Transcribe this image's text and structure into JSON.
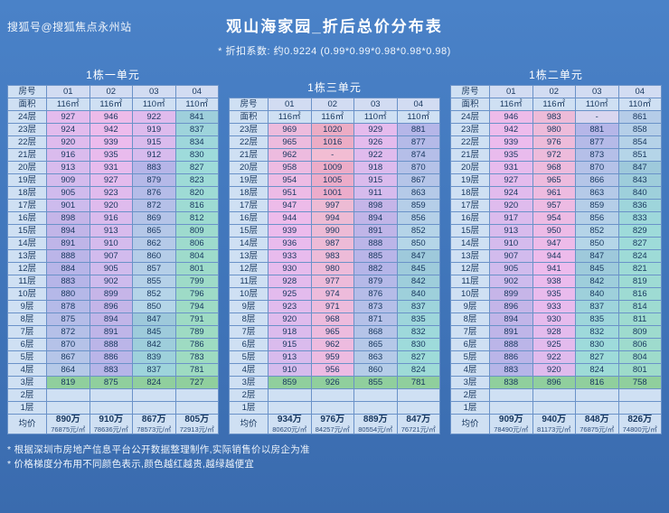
{
  "watermark": "搜狐号@搜狐焦点永州站",
  "title": "观山海家园_折后总价分布表",
  "subtitle": "* 折扣系数: 约0.9224 (0.99*0.99*0.98*0.98*0.98)",
  "notes": [
    "* 根据深圳市房地产信息平台公开数据整理制作,实际销售价以房企为准",
    "* 价格梯度分布用不同颜色表示,颜色越红越贵,越绿越便宜"
  ],
  "colors": {
    "background": "#4075ba",
    "header_bg": "#cfe0f3",
    "border": "#6a92c8",
    "green_row": "#90cf9d"
  },
  "chart_data": {
    "type": "table",
    "unit_of_values": "万 (total price)",
    "tables": [
      {
        "unit": "1栋一单元",
        "room_header": "房号",
        "area_header": "面积",
        "avg_label": "均价",
        "dash_color": "#d9d6ef",
        "columns": [
          "01",
          "02",
          "03",
          "04"
        ],
        "areas": [
          "116㎡",
          "116㎡",
          "110㎡",
          "110㎡"
        ],
        "floors": [
          {
            "label": "24层",
            "values": [
              927,
              946,
              922,
              841
            ]
          },
          {
            "label": "23层",
            "values": [
              924,
              942,
              919,
              837
            ]
          },
          {
            "label": "22层",
            "values": [
              920,
              939,
              915,
              834
            ]
          },
          {
            "label": "21层",
            "values": [
              916,
              935,
              912,
              830
            ]
          },
          {
            "label": "20层",
            "values": [
              913,
              931,
              883,
              827
            ]
          },
          {
            "label": "19层",
            "values": [
              909,
              927,
              879,
              823
            ]
          },
          {
            "label": "18层",
            "values": [
              905,
              923,
              876,
              820
            ]
          },
          {
            "label": "17层",
            "values": [
              901,
              920,
              872,
              816
            ]
          },
          {
            "label": "16层",
            "values": [
              898,
              916,
              869,
              812
            ]
          },
          {
            "label": "15层",
            "values": [
              894,
              913,
              865,
              809
            ]
          },
          {
            "label": "14层",
            "values": [
              891,
              910,
              862,
              806
            ]
          },
          {
            "label": "13层",
            "values": [
              888,
              907,
              860,
              804
            ]
          },
          {
            "label": "12层",
            "values": [
              884,
              905,
              857,
              801
            ]
          },
          {
            "label": "11层",
            "values": [
              883,
              902,
              855,
              799
            ]
          },
          {
            "label": "10层",
            "values": [
              880,
              899,
              852,
              796
            ]
          },
          {
            "label": "9层",
            "values": [
              878,
              896,
              850,
              794
            ]
          },
          {
            "label": "8层",
            "values": [
              875,
              894,
              847,
              791
            ]
          },
          {
            "label": "7层",
            "values": [
              872,
              891,
              845,
              789
            ]
          },
          {
            "label": "6层",
            "values": [
              870,
              888,
              842,
              786
            ]
          },
          {
            "label": "5层",
            "values": [
              867,
              886,
              839,
              783
            ]
          },
          {
            "label": "4层",
            "values": [
              864,
              883,
              837,
              781
            ]
          },
          {
            "label": "3层",
            "values": [
              819,
              875,
              824,
              727
            ],
            "green": true
          },
          {
            "label": "2层",
            "values": [
              null,
              null,
              null,
              null
            ]
          },
          {
            "label": "1层",
            "values": [
              null,
              null,
              null,
              null
            ]
          }
        ],
        "averages": [
          {
            "total": "890万",
            "per_sqm": "76875元/㎡"
          },
          {
            "total": "910万",
            "per_sqm": "78636元/㎡"
          },
          {
            "total": "867万",
            "per_sqm": "78573元/㎡"
          },
          {
            "total": "805万",
            "per_sqm": "72913元/㎡"
          }
        ]
      },
      {
        "unit": "1栋三单元",
        "room_header": "房号",
        "area_header": "面积",
        "avg_label": "均价",
        "dash_color": "#f2bdd3",
        "columns": [
          "01",
          "02",
          "03",
          "04"
        ],
        "areas": [
          "116㎡",
          "116㎡",
          "110㎡",
          "110㎡"
        ],
        "floors": [
          {
            "label": "23层",
            "values": [
              969,
              1020,
              929,
              881
            ]
          },
          {
            "label": "22层",
            "values": [
              965,
              1016,
              926,
              877
            ]
          },
          {
            "label": "21层",
            "values": [
              962,
              "-",
              922,
              874
            ]
          },
          {
            "label": "20层",
            "values": [
              958,
              1009,
              918,
              870
            ]
          },
          {
            "label": "19层",
            "values": [
              954,
              1005,
              915,
              867
            ]
          },
          {
            "label": "18层",
            "values": [
              951,
              1001,
              911,
              863
            ]
          },
          {
            "label": "17层",
            "values": [
              947,
              997,
              898,
              859
            ]
          },
          {
            "label": "16层",
            "values": [
              944,
              994,
              894,
              856
            ]
          },
          {
            "label": "15层",
            "values": [
              939,
              990,
              891,
              852
            ]
          },
          {
            "label": "14层",
            "values": [
              936,
              987,
              888,
              850
            ]
          },
          {
            "label": "13层",
            "values": [
              933,
              983,
              885,
              847
            ]
          },
          {
            "label": "12层",
            "values": [
              930,
              980,
              882,
              845
            ]
          },
          {
            "label": "11层",
            "values": [
              928,
              977,
              879,
              842
            ]
          },
          {
            "label": "10层",
            "values": [
              925,
              974,
              876,
              840
            ]
          },
          {
            "label": "9层",
            "values": [
              923,
              971,
              873,
              837
            ]
          },
          {
            "label": "8层",
            "values": [
              920,
              968,
              871,
              835
            ]
          },
          {
            "label": "7层",
            "values": [
              918,
              965,
              868,
              832
            ]
          },
          {
            "label": "6层",
            "values": [
              915,
              962,
              865,
              830
            ]
          },
          {
            "label": "5层",
            "values": [
              913,
              959,
              863,
              827
            ]
          },
          {
            "label": "4层",
            "values": [
              910,
              956,
              860,
              824
            ]
          },
          {
            "label": "3层",
            "values": [
              859,
              926,
              855,
              781
            ],
            "green": true
          },
          {
            "label": "2层",
            "values": [
              null,
              null,
              null,
              null
            ]
          },
          {
            "label": "1层",
            "values": [
              null,
              null,
              null,
              null
            ]
          }
        ],
        "averages": [
          {
            "total": "934万",
            "per_sqm": "80620元/㎡"
          },
          {
            "total": "976万",
            "per_sqm": "84257元/㎡"
          },
          {
            "total": "889万",
            "per_sqm": "80554元/㎡"
          },
          {
            "total": "847万",
            "per_sqm": "76721元/㎡"
          }
        ]
      },
      {
        "unit": "1栋二单元",
        "room_header": "房号",
        "area_header": "面积",
        "avg_label": "均价",
        "dash_color": "#d9d6ef",
        "columns": [
          "01",
          "02",
          "03",
          "04"
        ],
        "areas": [
          "116㎡",
          "116㎡",
          "110㎡",
          "110㎡"
        ],
        "floors": [
          {
            "label": "24层",
            "values": [
              946,
              983,
              "-",
              861
            ]
          },
          {
            "label": "23层",
            "values": [
              942,
              980,
              881,
              858
            ]
          },
          {
            "label": "22层",
            "values": [
              939,
              976,
              877,
              854
            ]
          },
          {
            "label": "21层",
            "values": [
              935,
              972,
              873,
              851
            ]
          },
          {
            "label": "20层",
            "values": [
              931,
              968,
              870,
              847
            ]
          },
          {
            "label": "19层",
            "values": [
              927,
              965,
              866,
              843
            ]
          },
          {
            "label": "18层",
            "values": [
              924,
              961,
              863,
              840
            ]
          },
          {
            "label": "17层",
            "values": [
              920,
              957,
              859,
              836
            ]
          },
          {
            "label": "16层",
            "values": [
              917,
              954,
              856,
              833
            ]
          },
          {
            "label": "15层",
            "values": [
              913,
              950,
              852,
              829
            ]
          },
          {
            "label": "14层",
            "values": [
              910,
              947,
              850,
              827
            ]
          },
          {
            "label": "13层",
            "values": [
              907,
              944,
              847,
              824
            ]
          },
          {
            "label": "12层",
            "values": [
              905,
              941,
              845,
              821
            ]
          },
          {
            "label": "11层",
            "values": [
              902,
              938,
              842,
              819
            ]
          },
          {
            "label": "10层",
            "values": [
              899,
              935,
              840,
              816
            ]
          },
          {
            "label": "9层",
            "values": [
              896,
              933,
              837,
              814
            ]
          },
          {
            "label": "8层",
            "values": [
              894,
              930,
              835,
              811
            ]
          },
          {
            "label": "7层",
            "values": [
              891,
              928,
              832,
              809
            ]
          },
          {
            "label": "6层",
            "values": [
              888,
              925,
              830,
              806
            ]
          },
          {
            "label": "5层",
            "values": [
              886,
              922,
              827,
              804
            ]
          },
          {
            "label": "4层",
            "values": [
              883,
              920,
              824,
              801
            ]
          },
          {
            "label": "3层",
            "values": [
              838,
              896,
              816,
              758
            ],
            "green": true
          },
          {
            "label": "2层",
            "values": [
              null,
              null,
              null,
              null
            ]
          },
          {
            "label": "1层",
            "values": [
              null,
              null,
              null,
              null
            ]
          }
        ],
        "averages": [
          {
            "total": "909万",
            "per_sqm": "78490元/㎡"
          },
          {
            "total": "940万",
            "per_sqm": "81173元/㎡"
          },
          {
            "total": "848万",
            "per_sqm": "76875元/㎡"
          },
          {
            "total": "826万",
            "per_sqm": "74800元/㎡"
          }
        ]
      }
    ]
  }
}
